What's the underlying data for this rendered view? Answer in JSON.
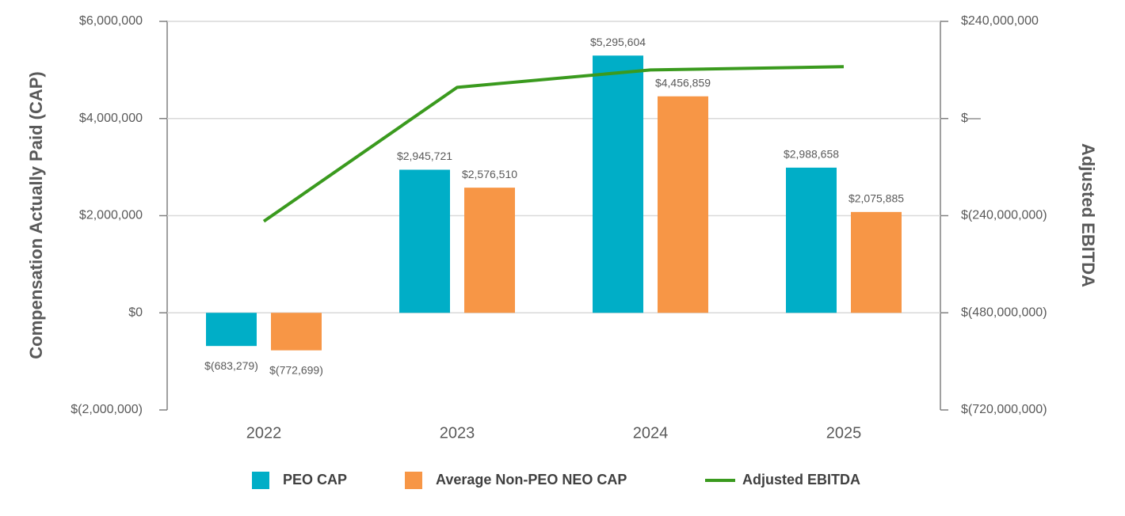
{
  "chart_data": {
    "type": "bar",
    "y_label": "Compensation Actually Paid (CAP)",
    "y2_label": "Adjusted EBITDA",
    "categories": [
      "2022",
      "2023",
      "2024",
      "2025"
    ],
    "series": [
      {
        "name": "PEO CAP",
        "color": "#00aec7",
        "values": [
          -683279,
          2945721,
          5295604,
          2988658
        ],
        "value_labels": [
          "$(683,279)",
          "$2,945,721",
          "$5,295,604",
          "$2,988,658"
        ]
      },
      {
        "name": "Average Non-PEO NEO CAP",
        "color": "#f79646",
        "values": [
          -772699,
          2576510,
          4456859,
          2075885
        ],
        "value_labels": [
          "$(772,699)",
          "$2,576,510",
          "$4,456,859",
          "$2,075,885"
        ]
      },
      {
        "name": "Adjusted EBITDA",
        "type": "line",
        "axis": "y2",
        "color": "#3a9a1e",
        "values": [
          -254000000,
          77000000,
          120000000,
          128000000
        ]
      }
    ],
    "ylim": [
      -2000000,
      6000000
    ],
    "yticks": [
      {
        "value": -2000000,
        "label": "$(2,000,000)"
      },
      {
        "value": 0,
        "label": "$0"
      },
      {
        "value": 2000000,
        "label": "$2,000,000"
      },
      {
        "value": 4000000,
        "label": "$4,000,000"
      },
      {
        "value": 6000000,
        "label": "$6,000,000"
      }
    ],
    "y2lim": [
      -720000000,
      240000000
    ],
    "y2ticks": [
      {
        "value": -720000000,
        "label": "$(720,000,000)"
      },
      {
        "value": -480000000,
        "label": "$(480,000,000)"
      },
      {
        "value": -240000000,
        "label": "$(240,000,000)"
      },
      {
        "value": 0,
        "label": "$—"
      },
      {
        "value": 240000000,
        "label": "$240,000,000"
      }
    ],
    "grid": true,
    "legend": "bottom"
  }
}
